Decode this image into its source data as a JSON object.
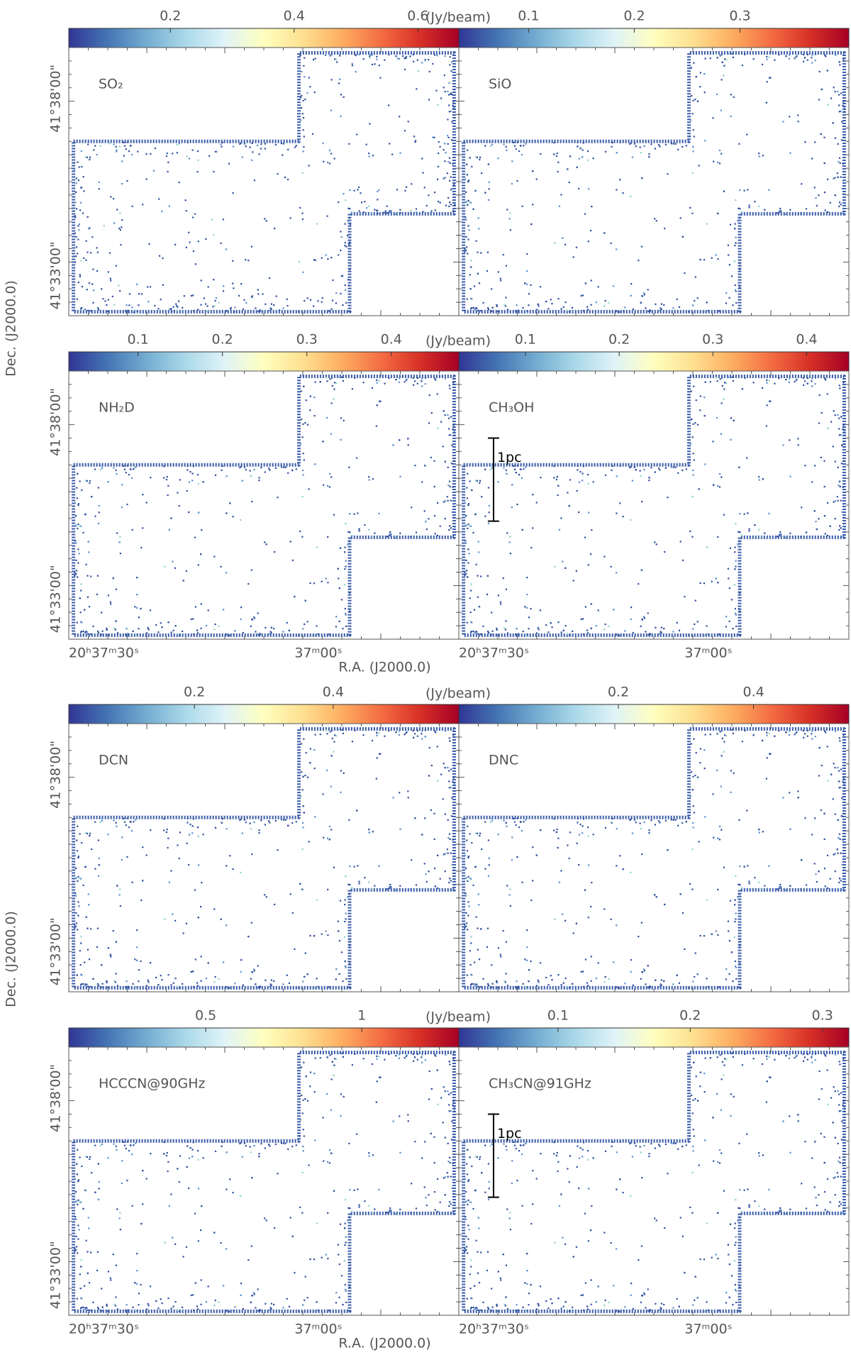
{
  "figure": {
    "colormap": [
      "#313695",
      "#4575b4",
      "#74add1",
      "#abd9e9",
      "#e0f3f8",
      "#ffffbf",
      "#fee090",
      "#fdae61",
      "#f46d43",
      "#d73027",
      "#a50026"
    ]
  },
  "chart_data": [
    {
      "type": "image",
      "title": "SO₂",
      "clim": [
        0.036,
        0.666
      ],
      "cticks": [
        0.2,
        0.4,
        0.6
      ],
      "colorbar_label": "(Jy/beam)",
      "ytick_labels": [
        "41°38'00\"",
        "41°33'00\""
      ]
    },
    {
      "type": "image",
      "title": "SiO",
      "clim": [
        0.034,
        0.403
      ],
      "cticks": [
        0.1,
        0.2,
        0.3
      ]
    },
    {
      "type": "image",
      "title": "NH₂D",
      "clim": [
        0.018,
        0.48
      ],
      "cticks": [
        0.1,
        0.2,
        0.3,
        0.4
      ],
      "colorbar_label": "(Jy/beam)",
      "ytick_labels": [
        "41°38'00\"",
        "41°33'00\""
      ],
      "xtick_labels": [
        "20ʰ37ᵐ30ˢ",
        "37ᵐ00ˢ"
      ],
      "ylabel": "Dec. (J2000.0)",
      "xlabel": "R.A. (J2000.0)"
    },
    {
      "type": "image",
      "title": "CH₃OH",
      "clim": [
        0.029,
        0.445
      ],
      "cticks": [
        0.1,
        0.2,
        0.3,
        0.4
      ],
      "xtick_labels": [
        "20ʰ37ᵐ30ˢ",
        "37ᵐ00ˢ"
      ],
      "scale_bar": "1pc"
    },
    {
      "type": "image",
      "title": "DCN",
      "clim": [
        0.019,
        0.581
      ],
      "cticks": [
        0.2,
        0.4
      ],
      "colorbar_label": "(Jy/beam)",
      "ytick_labels": [
        "41°38'00\"",
        "41°33'00\""
      ]
    },
    {
      "type": "image",
      "title": "DNC",
      "clim": [
        -0.036,
        0.541
      ],
      "cticks": [
        0.2,
        0.4
      ]
    },
    {
      "type": "image",
      "title": "HCCCN@90GHz",
      "clim": [
        0.061,
        1.311
      ],
      "cticks": [
        0.5,
        1
      ],
      "colorbar_label": "(Jy/beam)",
      "ytick_labels": [
        "41°38'00\"",
        "41°33'00\""
      ],
      "xtick_labels": [
        "20ʰ37ᵐ30ˢ",
        "37ᵐ00ˢ"
      ],
      "ylabel": "Dec. (J2000.0)",
      "xlabel": "R.A. (J2000.0)"
    },
    {
      "type": "image",
      "title": "CH₃CN@91GHz",
      "clim": [
        0.025,
        0.32
      ],
      "cticks": [
        0.1,
        0.2,
        0.3
      ],
      "xtick_labels": [
        "20ʰ37ᵐ30ˢ",
        "37ᵐ00ˢ"
      ],
      "scale_bar": "1pc"
    }
  ]
}
